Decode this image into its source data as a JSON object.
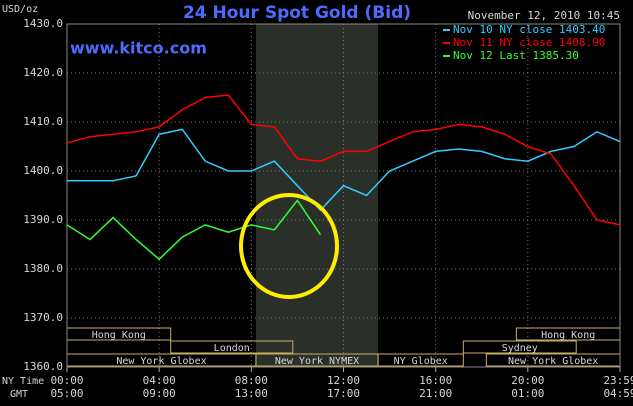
{
  "chart_data": {
    "type": "line",
    "title": "24 Hour Spot Gold (Bid)",
    "subtitle": "www.kitco.com",
    "timestamp": "November 12, 2010 10:45",
    "y_label": "USD/oz",
    "x_label": "NY Time",
    "x2_label": "GMT",
    "x": [
      0,
      1,
      2,
      3,
      4,
      5,
      6,
      7,
      8,
      9,
      10,
      11,
      12,
      13,
      14,
      15,
      16,
      17,
      18,
      19,
      20,
      21,
      22,
      23,
      24
    ],
    "xlim": [
      0,
      24
    ],
    "xticks": [
      {
        "value": 0,
        "label": "00:00"
      },
      {
        "value": 4,
        "label": "04:00"
      },
      {
        "value": 8,
        "label": "08:00"
      },
      {
        "value": 12,
        "label": "12:00"
      },
      {
        "value": 16,
        "label": "16:00"
      },
      {
        "value": 20,
        "label": "20:00"
      },
      {
        "value": 24,
        "label": "23:59"
      }
    ],
    "xticks_gmt": [
      {
        "value": 0,
        "label": "05:00"
      },
      {
        "value": 4,
        "label": "09:00"
      },
      {
        "value": 8,
        "label": "13:00"
      },
      {
        "value": 12,
        "label": "17:00"
      },
      {
        "value": 16,
        "label": "21:00"
      },
      {
        "value": 20,
        "label": "01:00"
      },
      {
        "value": 24,
        "label": "04:59"
      }
    ],
    "ylim": [
      1360,
      1430
    ],
    "yticks": [
      {
        "value": 1360,
        "label": "1360.0"
      },
      {
        "value": 1370,
        "label": "1370.0"
      },
      {
        "value": 1380,
        "label": "1380.0"
      },
      {
        "value": 1390,
        "label": "1390.0"
      },
      {
        "value": 1400,
        "label": "1400.0"
      },
      {
        "value": 1410,
        "label": "1410.0"
      },
      {
        "value": 1420,
        "label": "1420.0"
      },
      {
        "value": 1430,
        "label": "1430.0"
      }
    ],
    "grid": true,
    "legend": "top-right",
    "series": [
      {
        "name": "Nov 10 NY close 1403.40",
        "color": "#33ccff",
        "values": [
          1398,
          1398,
          1398,
          1399,
          1407.5,
          1408.5,
          1402,
          1400,
          1400,
          1402,
          1397,
          1392,
          1397,
          1395,
          1400,
          1402,
          1404,
          1404.5,
          1404,
          1402.5,
          1402,
          1404,
          1405,
          1408,
          1406
        ]
      },
      {
        "name": "Nov 11 NY close 1408.90",
        "color": "#ff0000",
        "values": [
          1405.7,
          1407,
          1407.5,
          1408,
          1409,
          1412.5,
          1415,
          1415.5,
          1409.5,
          1409,
          1402.5,
          1402,
          1404,
          1404,
          1406,
          1408,
          1408.5,
          1409.5,
          1409,
          1407.5,
          1405,
          1403.5,
          1397,
          1390,
          1389
        ]
      },
      {
        "name": "Nov 12 Last 1385.30",
        "color": "#33ff33",
        "values": [
          1389,
          1386,
          1390.5,
          1386,
          1382,
          1386.5,
          1389,
          1387.5,
          1389,
          1388,
          1394,
          1387,
          null,
          null,
          null,
          null,
          null,
          null,
          null,
          null,
          null,
          null,
          null,
          null,
          null
        ]
      }
    ],
    "sessions": [
      {
        "name": "Hong Kong",
        "start": 0,
        "end": 4.5
      },
      {
        "name": "London",
        "start": 4.5,
        "end": 9.8
      },
      {
        "name": "New York Globex",
        "start": 0,
        "end": 8.2
      },
      {
        "name": "New York NYMEX",
        "start": 8.2,
        "end": 13.5
      },
      {
        "name": "NY Globex",
        "start": 13.5,
        "end": 17.2
      },
      {
        "name": "Sydney",
        "start": 17.2,
        "end": 22.1
      },
      {
        "name": "Hong Kong",
        "start": 19.5,
        "end": 24
      },
      {
        "name": "New York Globex",
        "start": 18.2,
        "end": 24
      }
    ]
  }
}
